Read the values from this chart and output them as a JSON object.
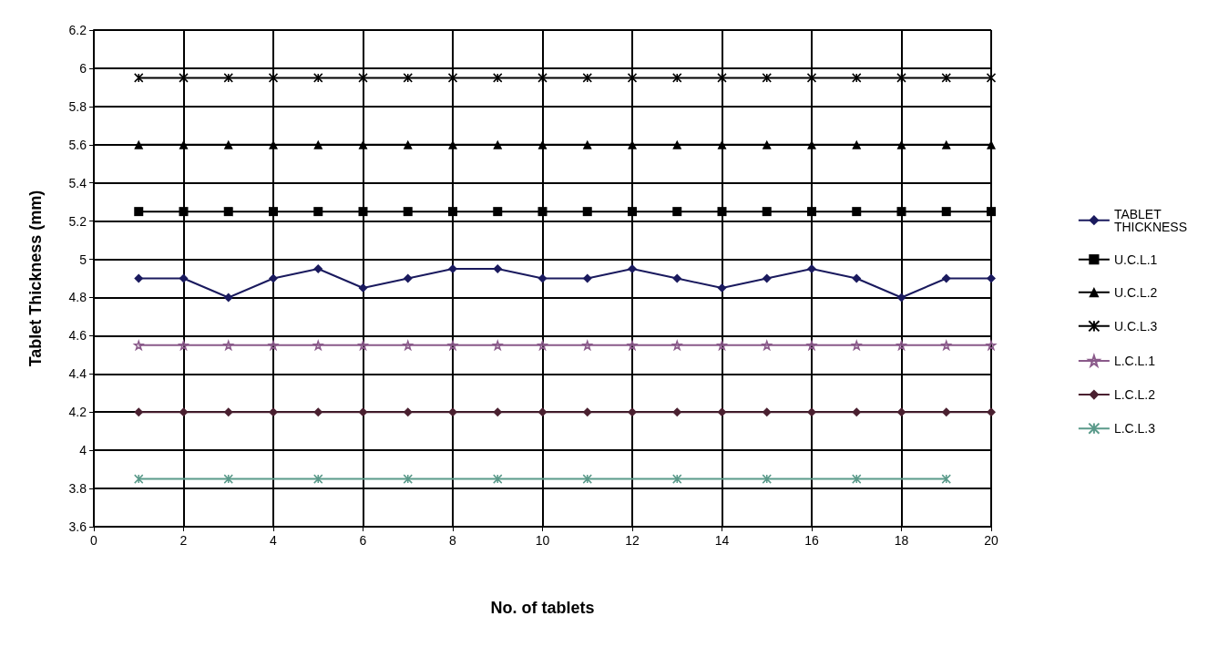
{
  "chart_data": {
    "type": "line",
    "xlabel": "No. of tablets",
    "ylabel": "Tablet Thickness (mm)",
    "x": [
      1,
      2,
      3,
      4,
      5,
      6,
      7,
      8,
      9,
      10,
      11,
      12,
      13,
      14,
      15,
      16,
      17,
      18,
      19,
      20
    ],
    "series": [
      {
        "name": "TABLET THICKNESS",
        "color": "#1a1a5e",
        "marker": "diamond",
        "values": [
          4.9,
          4.9,
          4.8,
          4.9,
          4.95,
          4.85,
          4.9,
          4.95,
          4.95,
          4.9,
          4.9,
          4.95,
          4.9,
          4.85,
          4.9,
          4.95,
          4.9,
          4.8,
          4.9,
          4.9
        ]
      },
      {
        "name": "U.C.L.1",
        "color": "#000000",
        "marker": "square",
        "values": [
          5.25,
          5.25,
          5.25,
          5.25,
          5.25,
          5.25,
          5.25,
          5.25,
          5.25,
          5.25,
          5.25,
          5.25,
          5.25,
          5.25,
          5.25,
          5.25,
          5.25,
          5.25,
          5.25,
          5.25
        ]
      },
      {
        "name": "U.C.L.2",
        "color": "#000000",
        "marker": "triangle",
        "values": [
          5.6,
          5.6,
          5.6,
          5.6,
          5.6,
          5.6,
          5.6,
          5.6,
          5.6,
          5.6,
          5.6,
          5.6,
          5.6,
          5.6,
          5.6,
          5.6,
          5.6,
          5.6,
          5.6,
          5.6
        ]
      },
      {
        "name": "U.C.L.3",
        "color": "#000000",
        "marker": "cross",
        "values": [
          5.95,
          5.95,
          5.95,
          5.95,
          5.95,
          5.95,
          5.95,
          5.95,
          5.95,
          5.95,
          5.95,
          5.95,
          5.95,
          5.95,
          5.95,
          5.95,
          5.95,
          5.95,
          5.95,
          5.95
        ]
      },
      {
        "name": "L.C.L.1",
        "color": "#8a5a8a",
        "marker": "star",
        "values": [
          4.55,
          4.55,
          4.55,
          4.55,
          4.55,
          4.55,
          4.55,
          4.55,
          4.55,
          4.55,
          4.55,
          4.55,
          4.55,
          4.55,
          4.55,
          4.55,
          4.55,
          4.55,
          4.55,
          4.55
        ]
      },
      {
        "name": "L.C.L.2",
        "color": "#4a2030",
        "marker": "diamond",
        "values": [
          4.2,
          4.2,
          4.2,
          4.2,
          4.2,
          4.2,
          4.2,
          4.2,
          4.2,
          4.2,
          4.2,
          4.2,
          4.2,
          4.2,
          4.2,
          4.2,
          4.2,
          4.2,
          4.2,
          4.2
        ]
      },
      {
        "name": "L.C.L.3",
        "color": "#5a9a8a",
        "marker": "cross",
        "values": [
          3.85,
          null,
          3.85,
          null,
          3.85,
          null,
          3.85,
          null,
          3.85,
          null,
          3.85,
          null,
          3.85,
          null,
          3.85,
          null,
          3.85,
          null,
          3.85,
          null
        ]
      }
    ],
    "xlim": [
      0,
      20
    ],
    "xticks": [
      0,
      2,
      4,
      6,
      8,
      10,
      12,
      14,
      16,
      18,
      20
    ],
    "ylim": [
      3.6,
      6.2
    ],
    "yticks": [
      3.6,
      3.8,
      4,
      4.2,
      4.4,
      4.6,
      4.8,
      5,
      5.2,
      5.4,
      5.6,
      5.8,
      6,
      6.2
    ],
    "grid": true,
    "legend": "right"
  }
}
